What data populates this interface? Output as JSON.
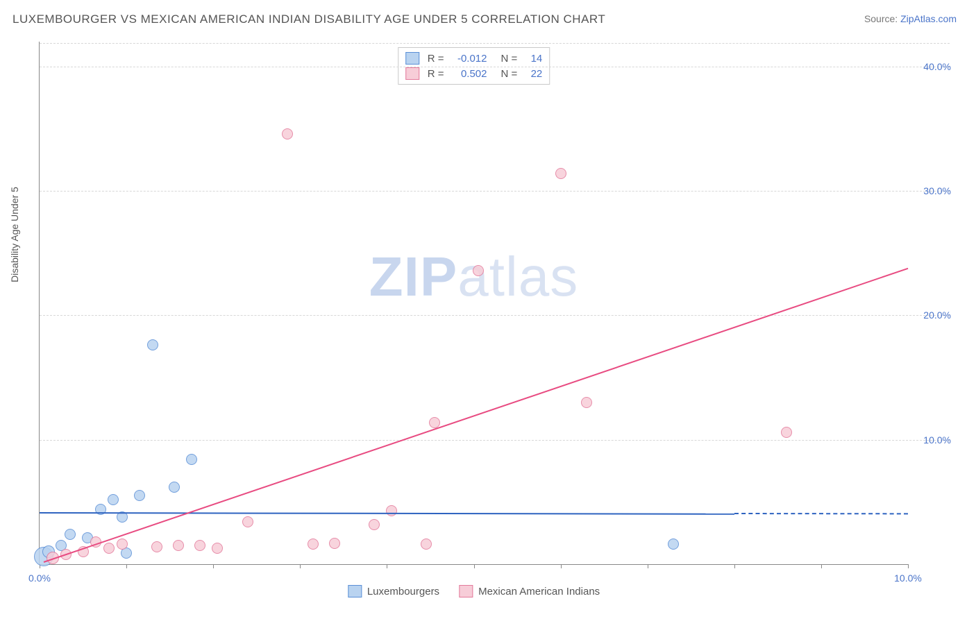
{
  "title": "LUXEMBOURGER VS MEXICAN AMERICAN INDIAN DISABILITY AGE UNDER 5 CORRELATION CHART",
  "source_label": "Source: ",
  "source_name": "ZipAtlas.com",
  "ylabel": "Disability Age Under 5",
  "watermark_a": "ZIP",
  "watermark_b": "atlas",
  "chart": {
    "type": "scatter",
    "xlim": [
      0,
      10
    ],
    "ylim": [
      0,
      42
    ],
    "xticks": [
      0,
      1,
      2,
      3,
      4,
      5,
      6,
      7,
      8,
      9,
      10
    ],
    "xtick_labels": {
      "0": "0.0%",
      "10": "10.0%"
    },
    "yticks": [
      10,
      20,
      30,
      40
    ],
    "ytick_labels": {
      "10": "10.0%",
      "20": "20.0%",
      "30": "30.0%",
      "40": "40.0%"
    },
    "grid_color": "#d7d7d7",
    "axis_color": "#888888",
    "label_color": "#4a74c9",
    "background": "#ffffff"
  },
  "series": {
    "lux": {
      "label": "Luxembourgers",
      "fill": "#b9d3f0",
      "stroke": "#5a8fd6",
      "line_color": "#2e63c0",
      "R_label": "R =",
      "R": "-0.012",
      "N_label": "N =",
      "N": "14",
      "reg_from": [
        0,
        4.2
      ],
      "reg_to": [
        8,
        4.1
      ],
      "reg_dash_to": [
        10,
        4.08
      ],
      "points": [
        {
          "x": 0.05,
          "y": 0.6,
          "r": 14
        },
        {
          "x": 0.1,
          "y": 1.0,
          "r": 9
        },
        {
          "x": 0.25,
          "y": 1.5,
          "r": 8
        },
        {
          "x": 0.35,
          "y": 2.4,
          "r": 8
        },
        {
          "x": 0.55,
          "y": 2.1,
          "r": 8
        },
        {
          "x": 0.7,
          "y": 4.4,
          "r": 8
        },
        {
          "x": 0.85,
          "y": 5.2,
          "r": 8
        },
        {
          "x": 0.95,
          "y": 3.8,
          "r": 8
        },
        {
          "x": 1.0,
          "y": 0.9,
          "r": 8
        },
        {
          "x": 1.15,
          "y": 5.5,
          "r": 8
        },
        {
          "x": 1.3,
          "y": 17.6,
          "r": 8
        },
        {
          "x": 1.55,
          "y": 6.2,
          "r": 8
        },
        {
          "x": 1.75,
          "y": 8.4,
          "r": 8
        },
        {
          "x": 7.3,
          "y": 1.6,
          "r": 8
        }
      ]
    },
    "mex": {
      "label": "Mexican American Indians",
      "fill": "#f7cdd8",
      "stroke": "#e37a9b",
      "line_color": "#e84b81",
      "R_label": "R =",
      "R": "0.502",
      "N_label": "N =",
      "N": "22",
      "reg_from": [
        0.05,
        0.2
      ],
      "reg_to": [
        10,
        23.8
      ],
      "points": [
        {
          "x": 0.15,
          "y": 0.5,
          "r": 9
        },
        {
          "x": 0.3,
          "y": 0.8,
          "r": 8
        },
        {
          "x": 0.5,
          "y": 1.0,
          "r": 8
        },
        {
          "x": 0.65,
          "y": 1.8,
          "r": 8
        },
        {
          "x": 0.8,
          "y": 1.3,
          "r": 8
        },
        {
          "x": 0.95,
          "y": 1.6,
          "r": 8
        },
        {
          "x": 1.35,
          "y": 1.4,
          "r": 8
        },
        {
          "x": 1.6,
          "y": 1.5,
          "r": 8
        },
        {
          "x": 1.85,
          "y": 1.5,
          "r": 8
        },
        {
          "x": 2.05,
          "y": 1.3,
          "r": 8
        },
        {
          "x": 2.4,
          "y": 3.4,
          "r": 8
        },
        {
          "x": 2.85,
          "y": 34.6,
          "r": 8
        },
        {
          "x": 3.15,
          "y": 1.6,
          "r": 8
        },
        {
          "x": 3.4,
          "y": 1.7,
          "r": 8
        },
        {
          "x": 3.85,
          "y": 3.2,
          "r": 8
        },
        {
          "x": 4.05,
          "y": 4.3,
          "r": 8
        },
        {
          "x": 4.45,
          "y": 1.6,
          "r": 8
        },
        {
          "x": 4.55,
          "y": 11.4,
          "r": 8
        },
        {
          "x": 5.05,
          "y": 23.6,
          "r": 8
        },
        {
          "x": 6.0,
          "y": 31.4,
          "r": 8
        },
        {
          "x": 6.3,
          "y": 13.0,
          "r": 8
        },
        {
          "x": 8.6,
          "y": 10.6,
          "r": 8
        }
      ]
    }
  }
}
